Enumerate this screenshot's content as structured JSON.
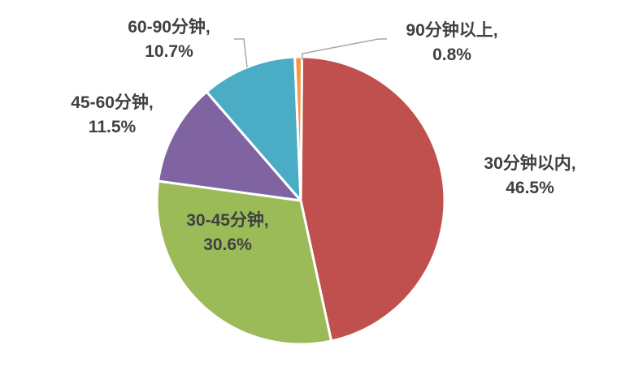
{
  "chart_data": {
    "type": "pie",
    "title": "",
    "legend": "none",
    "slices": [
      {
        "label": "30分钟以内,",
        "value": 46.5,
        "value_text": "46.5%",
        "color": "#c0504d"
      },
      {
        "label": "30-45分钟,",
        "value": 30.6,
        "value_text": "30.6%",
        "color": "#9bbb59"
      },
      {
        "label": "45-60分钟,",
        "value": 11.5,
        "value_text": "11.5%",
        "color": "#8064a2"
      },
      {
        "label": "60-90分钟,",
        "value": 10.7,
        "value_text": "10.7%",
        "color": "#4bacc6"
      },
      {
        "label": "90分钟以上,",
        "value": 0.8,
        "value_text": "0.8%",
        "color": "#f79646"
      }
    ]
  }
}
